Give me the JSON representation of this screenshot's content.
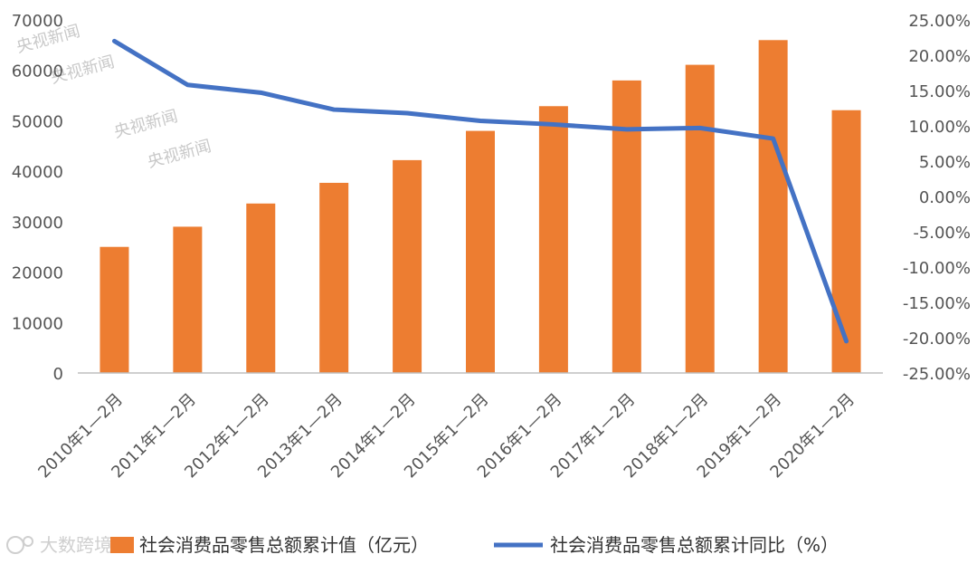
{
  "chart_data": {
    "type": "bar",
    "categories": [
      "2010年1—2月",
      "2011年1—2月",
      "2012年1—2月",
      "2013年1—2月",
      "2014年1—2月",
      "2015年1—2月",
      "2016年1—2月",
      "2017年1—2月",
      "2018年1—2月",
      "2019年1—2月",
      "2020年1—2月"
    ],
    "series": [
      {
        "name": "社会消费品零售总额累计值（亿元）",
        "type": "bar",
        "axis": "left",
        "color": "#ED7D31",
        "values": [
          25000,
          29000,
          33600,
          37700,
          42200,
          48000,
          52900,
          58000,
          61100,
          66000,
          52100
        ]
      },
      {
        "name": "社会消费品零售总额累计同比（%）",
        "type": "line",
        "axis": "right",
        "color": "#4472C4",
        "values": [
          22.0,
          15.8,
          14.7,
          12.3,
          11.8,
          10.7,
          10.2,
          9.5,
          9.7,
          8.2,
          -20.5
        ]
      }
    ],
    "y_left": {
      "min": 0,
      "max": 70000,
      "step": 10000,
      "ticks": [
        "0",
        "10000",
        "20000",
        "30000",
        "40000",
        "50000",
        "60000",
        "70000"
      ]
    },
    "y_right": {
      "min": -25,
      "max": 25,
      "step": 5,
      "ticks": [
        "-25.00%",
        "-20.00%",
        "-15.00%",
        "-10.00%",
        "-5.00%",
        "0.00%",
        "5.00%",
        "10.00%",
        "15.00%",
        "20.00%",
        "25.00%"
      ]
    },
    "grid": false,
    "legend_position": "bottom"
  },
  "watermarks": [
    "央视新闻",
    "央视新闻",
    "央视新闻",
    "央视新闻"
  ],
  "logo_text": "大数跨境"
}
